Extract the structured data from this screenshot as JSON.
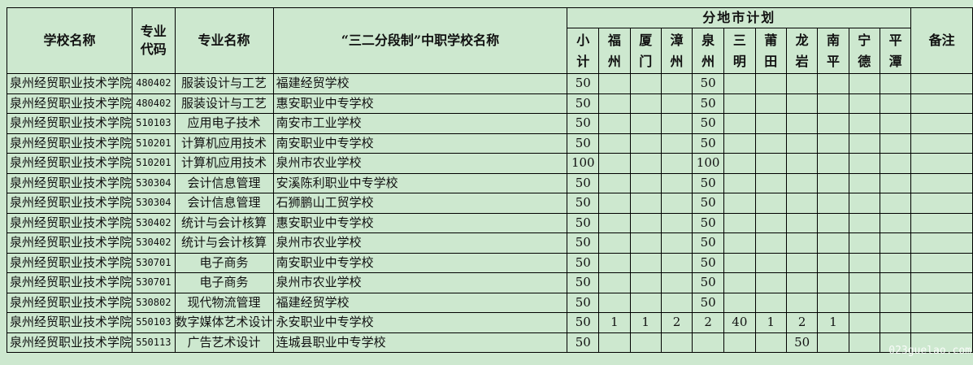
{
  "headers": {
    "school": "学校名称",
    "code": "专业代码",
    "major": "专业名称",
    "mid_school": "“三二分段制”中职学校名称",
    "regional_plan": "分地市计划",
    "regions": [
      "小计",
      "福州",
      "厦门",
      "漳州",
      "泉州",
      "三明",
      "莆田",
      "龙岩",
      "南平",
      "宁德",
      "平潭"
    ],
    "note": "备注"
  },
  "rows": [
    {
      "school": "泉州经贸职业技术学院",
      "code": "480402",
      "major": "服装设计与工艺",
      "mid": "福建经贸学校",
      "v": [
        "50",
        "",
        "",
        "",
        "50",
        "",
        "",
        "",
        "",
        "",
        ""
      ]
    },
    {
      "school": "泉州经贸职业技术学院",
      "code": "480402",
      "major": "服装设计与工艺",
      "mid": "惠安职业中专学校",
      "v": [
        "50",
        "",
        "",
        "",
        "50",
        "",
        "",
        "",
        "",
        "",
        ""
      ]
    },
    {
      "school": "泉州经贸职业技术学院",
      "code": "510103",
      "major": "应用电子技术",
      "mid": "南安市工业学校",
      "v": [
        "50",
        "",
        "",
        "",
        "50",
        "",
        "",
        "",
        "",
        "",
        ""
      ]
    },
    {
      "school": "泉州经贸职业技术学院",
      "code": "510201",
      "major": "计算机应用技术",
      "mid": "南安职业中专学校",
      "v": [
        "50",
        "",
        "",
        "",
        "50",
        "",
        "",
        "",
        "",
        "",
        ""
      ]
    },
    {
      "school": "泉州经贸职业技术学院",
      "code": "510201",
      "major": "计算机应用技术",
      "mid": "泉州市农业学校",
      "v": [
        "100",
        "",
        "",
        "",
        "100",
        "",
        "",
        "",
        "",
        "",
        ""
      ]
    },
    {
      "school": "泉州经贸职业技术学院",
      "code": "530304",
      "major": "会计信息管理",
      "mid": "安溪陈利职业中专学校",
      "v": [
        "50",
        "",
        "",
        "",
        "50",
        "",
        "",
        "",
        "",
        "",
        ""
      ]
    },
    {
      "school": "泉州经贸职业技术学院",
      "code": "530304",
      "major": "会计信息管理",
      "mid": "石狮鹏山工贸学校",
      "v": [
        "50",
        "",
        "",
        "",
        "50",
        "",
        "",
        "",
        "",
        "",
        ""
      ]
    },
    {
      "school": "泉州经贸职业技术学院",
      "code": "530402",
      "major": "统计与会计核算",
      "mid": "惠安职业中专学校",
      "v": [
        "50",
        "",
        "",
        "",
        "50",
        "",
        "",
        "",
        "",
        "",
        ""
      ]
    },
    {
      "school": "泉州经贸职业技术学院",
      "code": "530402",
      "major": "统计与会计核算",
      "mid": "泉州市农业学校",
      "v": [
        "50",
        "",
        "",
        "",
        "50",
        "",
        "",
        "",
        "",
        "",
        ""
      ]
    },
    {
      "school": "泉州经贸职业技术学院",
      "code": "530701",
      "major": "电子商务",
      "mid": "南安职业中专学校",
      "v": [
        "50",
        "",
        "",
        "",
        "50",
        "",
        "",
        "",
        "",
        "",
        ""
      ]
    },
    {
      "school": "泉州经贸职业技术学院",
      "code": "530701",
      "major": "电子商务",
      "mid": "泉州市农业学校",
      "v": [
        "50",
        "",
        "",
        "",
        "50",
        "",
        "",
        "",
        "",
        "",
        ""
      ]
    },
    {
      "school": "泉州经贸职业技术学院",
      "code": "530802",
      "major": "现代物流管理",
      "mid": "福建经贸学校",
      "v": [
        "50",
        "",
        "",
        "",
        "50",
        "",
        "",
        "",
        "",
        "",
        ""
      ]
    },
    {
      "school": "泉州经贸职业技术学院",
      "code": "550103",
      "major": "数字媒体艺术设计",
      "mid": "永安职业中专学校",
      "v": [
        "50",
        "1",
        "1",
        "2",
        "2",
        "40",
        "1",
        "2",
        "1",
        "",
        ""
      ]
    },
    {
      "school": "泉州经贸职业技术学院",
      "code": "550113",
      "major": "广告艺术设计",
      "mid": "连城县职业中专学校",
      "v": [
        "50",
        "",
        "",
        "",
        "",
        "",
        "",
        "50",
        "",
        "",
        ""
      ]
    }
  ],
  "watermark": "023guelao.com"
}
